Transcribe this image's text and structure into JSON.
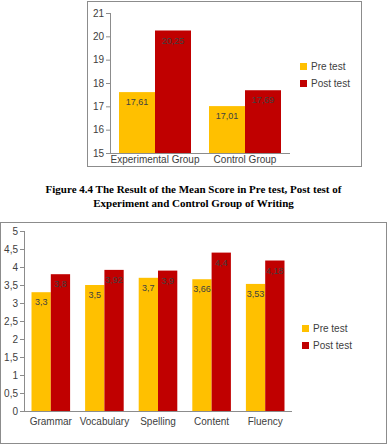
{
  "chart_data": [
    {
      "type": "bar",
      "title": "Figure 4.4 The Result of the Mean Score in Pre test, Post test of Experiment and Control Group of Writing",
      "categories": [
        "Experimental Group",
        "Control Group"
      ],
      "series": [
        {
          "name": "Pre test",
          "color": "#ffc000",
          "values": [
            17.61,
            17.01
          ],
          "value_labels": [
            "17,61",
            "17,01"
          ]
        },
        {
          "name": "Post test",
          "color": "#c00000",
          "values": [
            20.25,
            17.69
          ],
          "value_labels": [
            "20,25",
            "17,69"
          ]
        }
      ],
      "ylim": [
        15,
        21
      ],
      "yticks": [
        15,
        16,
        17,
        18,
        19,
        20,
        21
      ],
      "grid": false,
      "legend": "right",
      "data_labels": true
    },
    {
      "type": "bar",
      "categories": [
        "Grammar",
        "Vocabulary",
        "Spelling",
        "Content",
        "Fluency"
      ],
      "series": [
        {
          "name": "Pre test",
          "color": "#ffc000",
          "values": [
            3.3,
            3.5,
            3.7,
            3.66,
            3.53
          ],
          "value_labels": [
            "3,3",
            "3,5",
            "3,7",
            "3,66",
            "3,53"
          ]
        },
        {
          "name": "Post test",
          "color": "#c00000",
          "values": [
            3.8,
            3.92,
            3.9,
            4.4,
            4.18
          ],
          "value_labels": [
            "3,8",
            "3,92",
            "3,9",
            "4,4",
            "4,18"
          ]
        }
      ],
      "ylim": [
        0,
        5
      ],
      "yticks": [
        0,
        {
          "value": 0.5,
          "label": "0,5"
        },
        1,
        {
          "value": 1.5,
          "label": "1,5"
        },
        2,
        {
          "value": 2.5,
          "label": "2,5"
        },
        3,
        {
          "value": 3.5,
          "label": "3,5"
        },
        4,
        {
          "value": 4.5,
          "label": "4,5"
        },
        5
      ],
      "grid": false,
      "legend": "right",
      "data_labels": true
    }
  ]
}
